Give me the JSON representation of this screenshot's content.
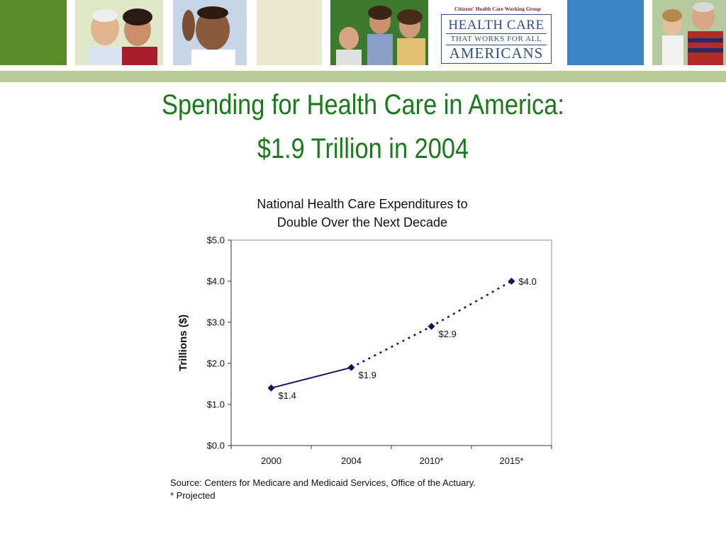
{
  "slide": {
    "title_line1": "Spending for Health Care in America:",
    "title_line2": "$1.9 Trillion in 2004"
  },
  "logo": {
    "tagline": "Citizens' Health Care Working Group",
    "line1": "HEALTH CARE",
    "line2": "THAT WORKS FOR ALL",
    "line3": "AMERICANS"
  },
  "colors": {
    "title_green": "#1a7a1a",
    "banner_green": "#5b8c2a",
    "banner_blue": "#3a86c4",
    "rule_green": "#b9cc9a",
    "series_navy": "#0d1560"
  },
  "chart_data": {
    "type": "line",
    "title_line1": "National Health Care Expenditures to",
    "title_line2": "Double Over the Next Decade",
    "ylabel": "Trillions ($)",
    "xlabel": "",
    "categories": [
      "2000",
      "2004",
      "2010*",
      "2015*"
    ],
    "values": [
      1.4,
      1.9,
      2.9,
      4.0
    ],
    "data_labels": [
      "$1.4",
      "$1.9",
      "$2.9",
      "$4.0"
    ],
    "actual_segment": "solid line 2000-2004",
    "projected_segment": "dotted line 2004-2015*",
    "yticks": [
      0,
      1,
      2,
      3,
      4,
      5
    ],
    "ytick_labels": [
      "$0.0",
      "$1.0",
      "$2.0",
      "$3.0",
      "$4.0",
      "$5.0"
    ],
    "ylim": [
      0,
      5
    ],
    "grid": false,
    "source": "Source: Centers for Medicare and Medicaid Services, Office of the Actuary.",
    "footnote": "* Projected"
  }
}
